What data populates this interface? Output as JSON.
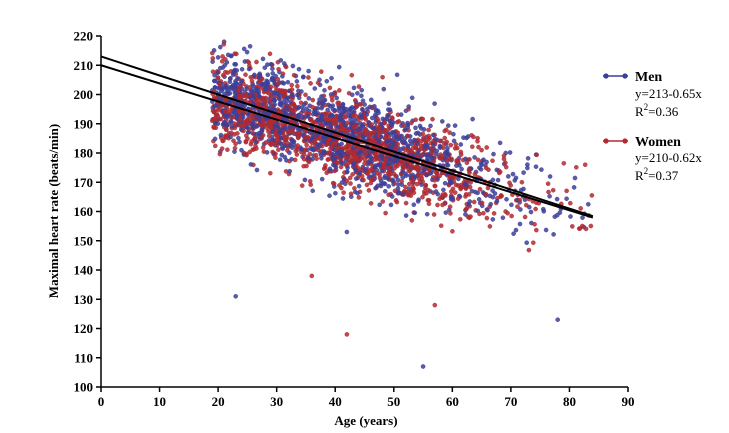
{
  "chart_data": {
    "type": "scatter",
    "title": "",
    "xlabel": "Age (years)",
    "ylabel": "Maximal heart rate (beats/min)",
    "xlim": [
      0,
      90
    ],
    "ylim": [
      100,
      220
    ],
    "x_ticks": [
      0,
      10,
      20,
      30,
      40,
      50,
      60,
      70,
      80,
      90
    ],
    "y_ticks": [
      100,
      110,
      120,
      130,
      140,
      150,
      160,
      170,
      180,
      190,
      200,
      210,
      220
    ],
    "grid": false,
    "legend_position": "right",
    "series": [
      {
        "name": "Men",
        "color": "#3c3f98",
        "fit": {
          "intercept": 213,
          "slope": -0.65,
          "x_range": [
            0,
            84
          ]
        },
        "equation": "y=213-0.65x",
        "r2_prefix": "R",
        "r2_sup": "2",
        "r2_value": "=0.36",
        "point_count": 1400,
        "x_range": [
          19,
          84
        ],
        "outliers": [
          [
            23,
            131
          ],
          [
            55,
            107
          ],
          [
            78,
            123
          ],
          [
            42,
            153
          ]
        ]
      },
      {
        "name": "Women",
        "color": "#b02a30",
        "fit": {
          "intercept": 210,
          "slope": -0.62,
          "x_range": [
            0,
            84
          ]
        },
        "equation": "y=210-0.62x",
        "r2_prefix": "R",
        "r2_sup": "2",
        "r2_value": "=0.37",
        "point_count": 1400,
        "x_range": [
          19,
          84
        ],
        "outliers": [
          [
            42,
            118
          ],
          [
            36,
            138
          ],
          [
            57,
            128
          ]
        ]
      }
    ]
  }
}
